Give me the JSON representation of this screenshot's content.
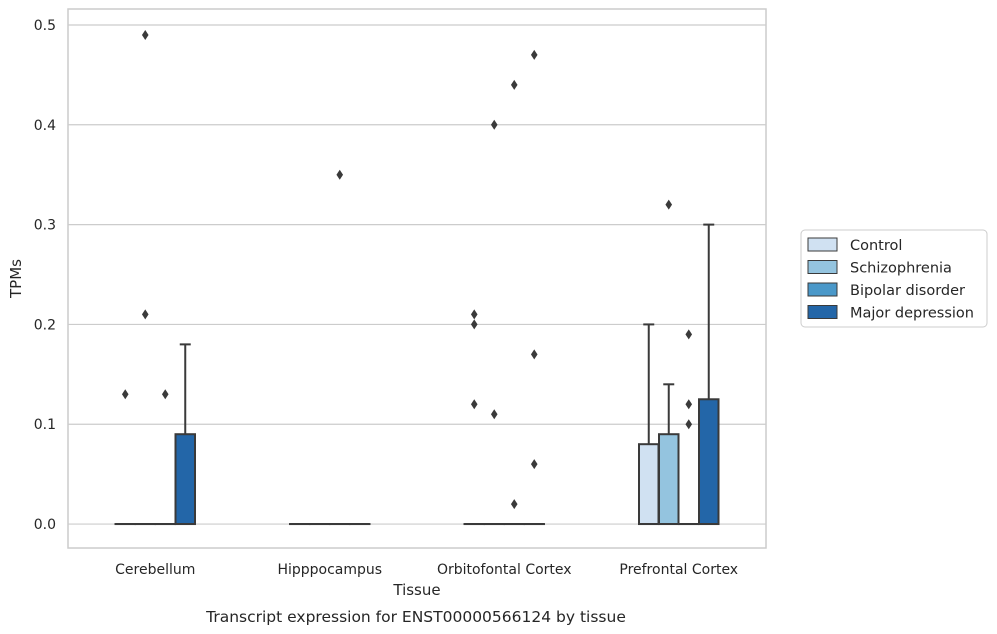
{
  "chart_data": {
    "type": "box",
    "xlabel": "Tissue",
    "ylabel": "TPMs",
    "caption": "Transcript expression for ENST00000566124 by tissue",
    "ylim": [
      -0.024,
      0.516
    ],
    "yticks": [
      "0.0",
      "0.1",
      "0.2",
      "0.3",
      "0.4",
      "0.5"
    ],
    "grid": "horizontal",
    "legend_position": "right",
    "categories": [
      "Cerebellum",
      "Hipppocampus",
      "Orbitofontal Cortex",
      "Prefrontal Cortex"
    ],
    "series": [
      {
        "name": "Control",
        "color": "#d0e1f2",
        "boxes": [
          {
            "q1": 0,
            "median": 0,
            "q3": 0,
            "whisker_low": 0,
            "whisker_high": 0,
            "outliers": [
              0.13
            ]
          },
          {
            "q1": 0,
            "median": 0,
            "q3": 0,
            "whisker_low": 0,
            "whisker_high": 0,
            "outliers": []
          },
          {
            "q1": 0,
            "median": 0,
            "q3": 0,
            "whisker_low": 0,
            "whisker_high": 0,
            "outliers": [
              0.12,
              0.2,
              0.21
            ]
          },
          {
            "q1": 0,
            "median": 0,
            "q3": 0.08,
            "whisker_low": 0,
            "whisker_high": 0.2,
            "outliers": []
          }
        ]
      },
      {
        "name": "Schizophrenia",
        "color": "#94c4df",
        "boxes": [
          {
            "q1": 0,
            "median": 0,
            "q3": 0,
            "whisker_low": 0,
            "whisker_high": 0,
            "outliers": [
              0.49,
              0.21
            ]
          },
          {
            "q1": 0,
            "median": 0,
            "q3": 0,
            "whisker_low": 0,
            "whisker_high": 0,
            "outliers": []
          },
          {
            "q1": 0,
            "median": 0,
            "q3": 0,
            "whisker_low": 0,
            "whisker_high": 0,
            "outliers": [
              0.4,
              0.11
            ]
          },
          {
            "q1": 0,
            "median": 0,
            "q3": 0.09,
            "whisker_low": 0,
            "whisker_high": 0.14,
            "outliers": [
              0.32
            ]
          }
        ]
      },
      {
        "name": "Bipolar disorder",
        "color": "#4a98c9",
        "boxes": [
          {
            "q1": 0,
            "median": 0,
            "q3": 0,
            "whisker_low": 0,
            "whisker_high": 0,
            "outliers": [
              0.13
            ]
          },
          {
            "q1": 0,
            "median": 0,
            "q3": 0,
            "whisker_low": 0,
            "whisker_high": 0,
            "outliers": [
              0.35
            ]
          },
          {
            "q1": 0,
            "median": 0,
            "q3": 0,
            "whisker_low": 0,
            "whisker_high": 0,
            "outliers": [
              0.44,
              0.02
            ]
          },
          {
            "q1": 0,
            "median": 0,
            "q3": 0,
            "whisker_low": 0,
            "whisker_high": 0,
            "outliers": [
              0.19,
              0.12,
              0.1
            ]
          }
        ]
      },
      {
        "name": "Major depression",
        "color": "#2366a8",
        "boxes": [
          {
            "q1": 0,
            "median": 0,
            "q3": 0.09,
            "whisker_low": 0,
            "whisker_high": 0.18,
            "outliers": []
          },
          {
            "q1": 0,
            "median": 0,
            "q3": 0,
            "whisker_low": 0,
            "whisker_high": 0,
            "outliers": []
          },
          {
            "q1": 0,
            "median": 0,
            "q3": 0,
            "whisker_low": 0,
            "whisker_high": 0,
            "outliers": [
              0.47,
              0.17,
              0.06
            ]
          },
          {
            "q1": 0,
            "median": 0,
            "q3": 0.125,
            "whisker_low": 0,
            "whisker_high": 0.3,
            "outliers": []
          }
        ]
      }
    ]
  },
  "colors": {
    "grid": "#cccccc",
    "frame": "#cccccc",
    "box_edge": "#3a3a3a",
    "outlier": "#3a3a3a"
  }
}
